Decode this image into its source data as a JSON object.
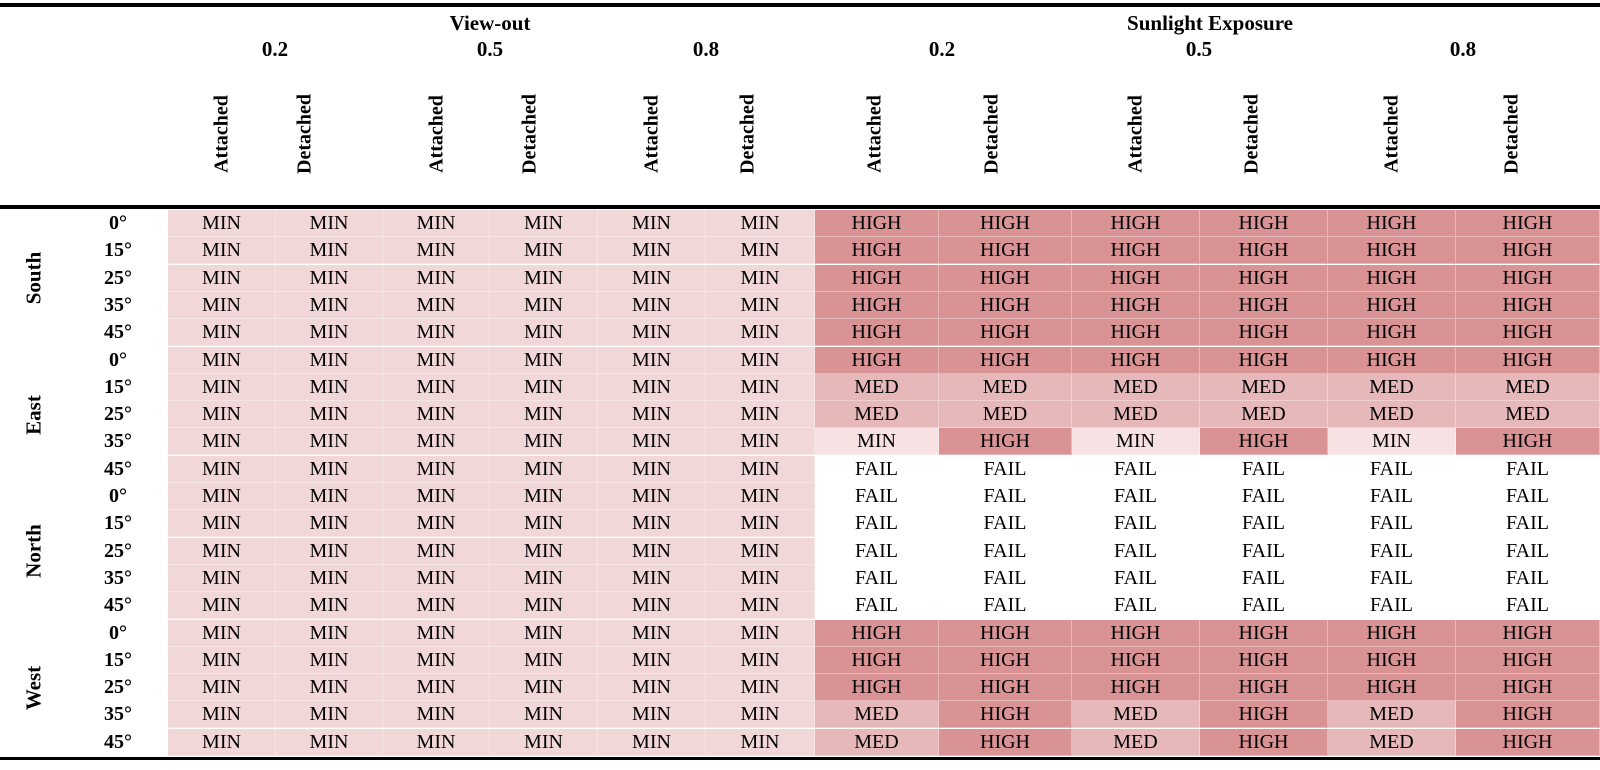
{
  "header": {
    "view_out": "View-out",
    "sunlight": "Sunlight Exposure",
    "ratios": [
      "0.2",
      "0.5",
      "0.8"
    ],
    "attached": "Attached",
    "detached": "Detached"
  },
  "orientations": [
    {
      "name": "South",
      "rows": [
        0,
        4
      ]
    },
    {
      "name": "East",
      "rows": [
        5,
        9
      ]
    },
    {
      "name": "North",
      "rows": [
        10,
        14
      ]
    },
    {
      "name": "West",
      "rows": [
        15,
        19
      ]
    }
  ],
  "rows": [
    {
      "angle": "0°",
      "cells": [
        "MIN",
        "MIN",
        "MIN",
        "MIN",
        "MIN",
        "MIN",
        "HIGH",
        "HIGH",
        "HIGH",
        "HIGH",
        "HIGH",
        "HIGH"
      ]
    },
    {
      "angle": "15°",
      "cells": [
        "MIN",
        "MIN",
        "MIN",
        "MIN",
        "MIN",
        "MIN",
        "HIGH",
        "HIGH",
        "HIGH",
        "HIGH",
        "HIGH",
        "HIGH"
      ]
    },
    {
      "angle": "25°",
      "cells": [
        "MIN",
        "MIN",
        "MIN",
        "MIN",
        "MIN",
        "MIN",
        "HIGH",
        "HIGH",
        "HIGH",
        "HIGH",
        "HIGH",
        "HIGH"
      ]
    },
    {
      "angle": "35°",
      "cells": [
        "MIN",
        "MIN",
        "MIN",
        "MIN",
        "MIN",
        "MIN",
        "HIGH",
        "HIGH",
        "HIGH",
        "HIGH",
        "HIGH",
        "HIGH"
      ]
    },
    {
      "angle": "45°",
      "cells": [
        "MIN",
        "MIN",
        "MIN",
        "MIN",
        "MIN",
        "MIN",
        "HIGH",
        "HIGH",
        "HIGH",
        "HIGH",
        "HIGH",
        "HIGH"
      ]
    },
    {
      "angle": "0°",
      "cells": [
        "MIN",
        "MIN",
        "MIN",
        "MIN",
        "MIN",
        "MIN",
        "HIGH",
        "HIGH",
        "HIGH",
        "HIGH",
        "HIGH",
        "HIGH"
      ]
    },
    {
      "angle": "15°",
      "cells": [
        "MIN",
        "MIN",
        "MIN",
        "MIN",
        "MIN",
        "MIN",
        "MED",
        "MED",
        "MED",
        "MED",
        "MED",
        "MED"
      ]
    },
    {
      "angle": "25°",
      "cells": [
        "MIN",
        "MIN",
        "MIN",
        "MIN",
        "MIN",
        "MIN",
        "MED",
        "MED",
        "MED",
        "MED",
        "MED",
        "MED"
      ]
    },
    {
      "angle": "35°",
      "cells": [
        "MIN",
        "MIN",
        "MIN",
        "MIN",
        "MIN",
        "MIN",
        "MIN",
        "HIGH",
        "MIN",
        "HIGH",
        "MIN",
        "HIGH"
      ]
    },
    {
      "angle": "45°",
      "cells": [
        "MIN",
        "MIN",
        "MIN",
        "MIN",
        "MIN",
        "MIN",
        "FAIL",
        "FAIL",
        "FAIL",
        "FAIL",
        "FAIL",
        "FAIL"
      ]
    },
    {
      "angle": "0°",
      "cells": [
        "MIN",
        "MIN",
        "MIN",
        "MIN",
        "MIN",
        "MIN",
        "FAIL",
        "FAIL",
        "FAIL",
        "FAIL",
        "FAIL",
        "FAIL"
      ]
    },
    {
      "angle": "15°",
      "cells": [
        "MIN",
        "MIN",
        "MIN",
        "MIN",
        "MIN",
        "MIN",
        "FAIL",
        "FAIL",
        "FAIL",
        "FAIL",
        "FAIL",
        "FAIL"
      ]
    },
    {
      "angle": "25°",
      "cells": [
        "MIN",
        "MIN",
        "MIN",
        "MIN",
        "MIN",
        "MIN",
        "FAIL",
        "FAIL",
        "FAIL",
        "FAIL",
        "FAIL",
        "FAIL"
      ]
    },
    {
      "angle": "35°",
      "cells": [
        "MIN",
        "MIN",
        "MIN",
        "MIN",
        "MIN",
        "MIN",
        "FAIL",
        "FAIL",
        "FAIL",
        "FAIL",
        "FAIL",
        "FAIL"
      ]
    },
    {
      "angle": "45°",
      "cells": [
        "MIN",
        "MIN",
        "MIN",
        "MIN",
        "MIN",
        "MIN",
        "FAIL",
        "FAIL",
        "FAIL",
        "FAIL",
        "FAIL",
        "FAIL"
      ]
    },
    {
      "angle": "0°",
      "cells": [
        "MIN",
        "MIN",
        "MIN",
        "MIN",
        "MIN",
        "MIN",
        "HIGH",
        "HIGH",
        "HIGH",
        "HIGH",
        "HIGH",
        "HIGH"
      ]
    },
    {
      "angle": "15°",
      "cells": [
        "MIN",
        "MIN",
        "MIN",
        "MIN",
        "MIN",
        "MIN",
        "HIGH",
        "HIGH",
        "HIGH",
        "HIGH",
        "HIGH",
        "HIGH"
      ]
    },
    {
      "angle": "25°",
      "cells": [
        "MIN",
        "MIN",
        "MIN",
        "MIN",
        "MIN",
        "MIN",
        "HIGH",
        "HIGH",
        "HIGH",
        "HIGH",
        "HIGH",
        "HIGH"
      ]
    },
    {
      "angle": "35°",
      "cells": [
        "MIN",
        "MIN",
        "MIN",
        "MIN",
        "MIN",
        "MIN",
        "MED",
        "HIGH",
        "MED",
        "HIGH",
        "MED",
        "HIGH"
      ]
    },
    {
      "angle": "45°",
      "cells": [
        "MIN",
        "MIN",
        "MIN",
        "MIN",
        "MIN",
        "MIN",
        "MED",
        "HIGH",
        "MED",
        "HIGH",
        "MED",
        "HIGH"
      ]
    }
  ],
  "colors": {
    "MIN": "#f2d7d8",
    "MED": "#e6b8b9",
    "HIGH": "#d99395",
    "FAIL": "#ffffff"
  }
}
